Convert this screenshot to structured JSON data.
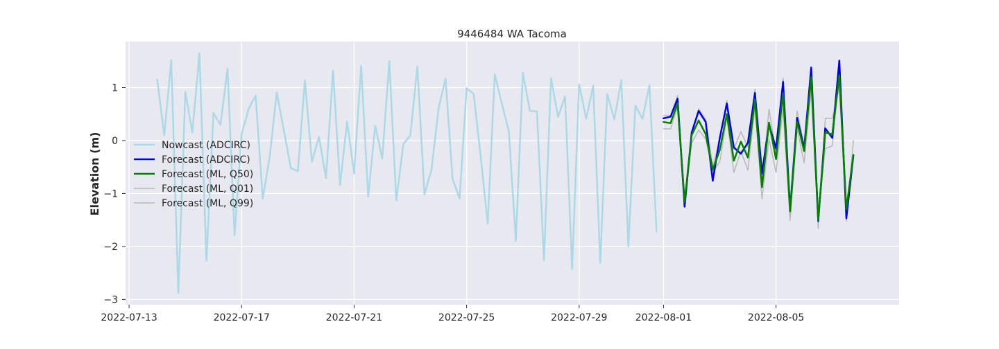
{
  "chart_data": {
    "type": "line",
    "title": "9446484 WA Tacoma",
    "xlabel": "",
    "ylabel": "Elevation (m)",
    "x_tick_labels": [
      "2022-07-13",
      "2022-07-17",
      "2022-07-21",
      "2022-07-25",
      "2022-07-29",
      "2022-08-01",
      "2022-08-05"
    ],
    "x_tick_dates": [
      "2022-07-13",
      "2022-07-17",
      "2022-07-21",
      "2022-07-25",
      "2022-07-29",
      "2022-08-01",
      "2022-08-05"
    ],
    "y_ticks": [
      1,
      0,
      -1,
      -2,
      -3
    ],
    "y_tick_labels": [
      "1",
      "0",
      "−1",
      "−2",
      "−3"
    ],
    "xlim": [
      "2022-07-12 21:00",
      "2022-08-09 09:00"
    ],
    "ylim": [
      -3.1,
      1.87
    ],
    "grid": true,
    "legend_position": "center-left",
    "series": [
      {
        "name": "Nowcast (ADCIRC)",
        "color": "#add8e6",
        "width": 2.5,
        "x_start": "2022-07-14 00:00",
        "x_step_hours": 6,
        "values": [
          1.15,
          0.1,
          1.52,
          -2.88,
          0.92,
          0.15,
          1.65,
          -2.27,
          0.52,
          0.3,
          1.36,
          -1.79,
          0.12,
          0.6,
          0.85,
          -1.1,
          -0.3,
          0.91,
          0.2,
          -0.52,
          -0.58,
          1.14,
          -0.4,
          0.07,
          -0.71,
          1.32,
          -0.84,
          0.36,
          -0.62,
          1.41,
          -1.06,
          0.28,
          -0.34,
          1.5,
          -1.13,
          -0.07,
          0.1,
          1.4,
          -1.02,
          -0.55,
          0.6,
          1.17,
          -0.72,
          -1.1,
          0.99,
          0.88,
          -0.3,
          -1.57,
          1.25,
          0.7,
          0.18,
          -1.9,
          1.28,
          0.56,
          0.55,
          -2.26,
          1.18,
          0.45,
          0.83,
          -2.43,
          1.06,
          0.41,
          1.04,
          -2.31,
          0.88,
          0.4,
          1.14,
          -2.0,
          0.66,
          0.41,
          1.05,
          -1.72
        ]
      },
      {
        "name": "Forecast (ML, Q01)",
        "color": "#b8b8b8",
        "width": 1.5,
        "x_start": "2022-08-01 00:00",
        "x_step_hours": 6,
        "values": [
          0.22,
          0.22,
          0.64,
          -1.17,
          -0.05,
          0.2,
          0.03,
          -0.6,
          -0.4,
          0.44,
          -0.6,
          -0.2,
          -0.56,
          0.62,
          -1.1,
          0.03,
          -0.6,
          0.6,
          -1.51,
          0.22,
          -0.42,
          0.95,
          -1.66,
          0.42,
          0.42,
          1.0,
          -1.52,
          0.0
        ]
      },
      {
        "name": "Forecast (ML, Q99)",
        "color": "#b8b8b8",
        "width": 1.5,
        "x_start": "2022-08-01 00:00",
        "x_step_hours": 6,
        "values": [
          0.47,
          0.47,
          0.85,
          -1.1,
          0.17,
          0.6,
          0.4,
          -0.48,
          0.0,
          0.76,
          -0.16,
          0.17,
          -0.12,
          0.97,
          -0.78,
          0.59,
          -0.25,
          1.18,
          -1.25,
          0.56,
          -0.1,
          1.35,
          -1.42,
          -0.15,
          -0.1,
          1.25,
          -1.36,
          -0.35
        ]
      },
      {
        "name": "Forecast (ADCIRC)",
        "color": "#0000dd",
        "width": 2.5,
        "x_start": "2022-08-01 00:00",
        "x_step_hours": 6,
        "values": [
          0.42,
          0.45,
          0.79,
          -1.25,
          0.15,
          0.56,
          0.35,
          -0.76,
          0.05,
          0.7,
          -0.13,
          -0.25,
          -0.04,
          0.9,
          -0.62,
          0.3,
          -0.15,
          1.11,
          -1.3,
          0.43,
          -0.15,
          1.38,
          -1.52,
          0.23,
          0.05,
          1.51,
          -1.47,
          -0.28
        ]
      },
      {
        "name": "Forecast (ML, Q50)",
        "color": "#008000",
        "width": 2.5,
        "x_start": "2022-08-01 00:00",
        "x_step_hours": 6,
        "values": [
          0.35,
          0.33,
          0.7,
          -1.16,
          0.1,
          0.38,
          0.12,
          -0.55,
          -0.18,
          0.5,
          -0.38,
          -0.02,
          -0.32,
          0.78,
          -0.88,
          0.34,
          -0.35,
          0.9,
          -1.34,
          0.35,
          -0.2,
          1.2,
          -1.5,
          0.15,
          0.12,
          1.23,
          -1.3,
          -0.27
        ]
      }
    ],
    "legend": [
      {
        "label": "Nowcast (ADCIRC)",
        "color": "#add8e6"
      },
      {
        "label": "Forecast (ADCIRC)",
        "color": "#0000dd"
      },
      {
        "label": "Forecast (ML, Q50)",
        "color": "#008000"
      },
      {
        "label": "Forecast (ML, Q01)",
        "color": "#b8b8b8"
      },
      {
        "label": "Forecast (ML, Q99)",
        "color": "#b8b8b8"
      }
    ]
  }
}
